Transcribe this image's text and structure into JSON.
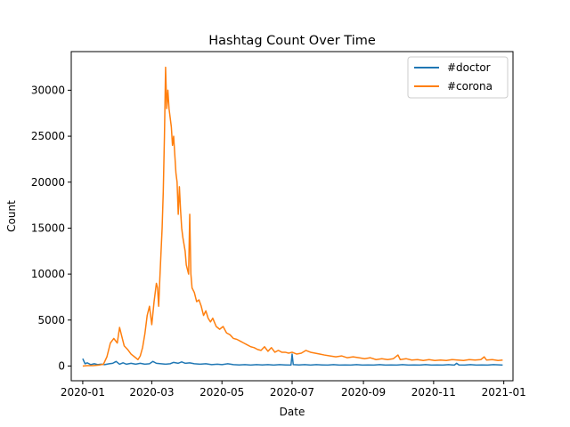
{
  "chart_data": {
    "type": "line",
    "title": "Hashtag Count Over Time",
    "xlabel": "Date",
    "ylabel": "Count",
    "x_type": "date",
    "xlim": [
      "2019-12-22",
      "2021-01-09"
    ],
    "ylim": [
      -1600,
      34200
    ],
    "x_ticks": [
      "2020-01",
      "2020-03",
      "2020-05",
      "2020-07",
      "2020-09",
      "2020-11",
      "2021-01"
    ],
    "x_tick_dates": [
      "2020-01-01",
      "2020-03-01",
      "2020-05-01",
      "2020-07-01",
      "2020-09-01",
      "2020-11-01",
      "2021-01-01"
    ],
    "y_ticks": [
      "0",
      "5000",
      "10000",
      "15000",
      "20000",
      "25000",
      "30000"
    ],
    "y_tick_values": [
      0,
      5000,
      10000,
      15000,
      20000,
      25000,
      30000
    ],
    "legend_position": "top-right",
    "grid": false,
    "series": [
      {
        "name": "#doctor",
        "color": "#1f77b4",
        "points": [
          [
            "2020-01-01",
            800
          ],
          [
            "2020-01-03",
            250
          ],
          [
            "2020-01-05",
            350
          ],
          [
            "2020-01-08",
            150
          ],
          [
            "2020-01-11",
            250
          ],
          [
            "2020-01-14",
            150
          ],
          [
            "2020-01-17",
            200
          ],
          [
            "2020-01-20",
            150
          ],
          [
            "2020-01-24",
            250
          ],
          [
            "2020-01-27",
            300
          ],
          [
            "2020-01-30",
            500
          ],
          [
            "2020-02-02",
            200
          ],
          [
            "2020-02-05",
            350
          ],
          [
            "2020-02-08",
            200
          ],
          [
            "2020-02-12",
            300
          ],
          [
            "2020-02-16",
            200
          ],
          [
            "2020-02-20",
            300
          ],
          [
            "2020-02-24",
            200
          ],
          [
            "2020-02-28",
            250
          ],
          [
            "2020-03-02",
            500
          ],
          [
            "2020-03-05",
            300
          ],
          [
            "2020-03-09",
            250
          ],
          [
            "2020-03-13",
            200
          ],
          [
            "2020-03-17",
            250
          ],
          [
            "2020-03-20",
            400
          ],
          [
            "2020-03-24",
            300
          ],
          [
            "2020-03-27",
            450
          ],
          [
            "2020-03-30",
            300
          ],
          [
            "2020-04-03",
            350
          ],
          [
            "2020-04-07",
            250
          ],
          [
            "2020-04-12",
            200
          ],
          [
            "2020-04-17",
            250
          ],
          [
            "2020-04-22",
            150
          ],
          [
            "2020-04-27",
            200
          ],
          [
            "2020-05-01",
            150
          ],
          [
            "2020-05-06",
            250
          ],
          [
            "2020-05-11",
            150
          ],
          [
            "2020-05-16",
            120
          ],
          [
            "2020-05-21",
            150
          ],
          [
            "2020-05-26",
            100
          ],
          [
            "2020-05-31",
            150
          ],
          [
            "2020-06-05",
            120
          ],
          [
            "2020-06-10",
            150
          ],
          [
            "2020-06-15",
            100
          ],
          [
            "2020-06-20",
            150
          ],
          [
            "2020-06-25",
            120
          ],
          [
            "2020-06-30",
            100
          ],
          [
            "2020-07-01",
            1300
          ],
          [
            "2020-07-02",
            150
          ],
          [
            "2020-07-07",
            120
          ],
          [
            "2020-07-12",
            150
          ],
          [
            "2020-07-17",
            100
          ],
          [
            "2020-07-22",
            150
          ],
          [
            "2020-07-27",
            120
          ],
          [
            "2020-08-01",
            100
          ],
          [
            "2020-08-06",
            150
          ],
          [
            "2020-08-11",
            100
          ],
          [
            "2020-08-16",
            120
          ],
          [
            "2020-08-21",
            100
          ],
          [
            "2020-08-26",
            150
          ],
          [
            "2020-08-31",
            100
          ],
          [
            "2020-09-05",
            120
          ],
          [
            "2020-09-10",
            100
          ],
          [
            "2020-09-15",
            150
          ],
          [
            "2020-09-20",
            100
          ],
          [
            "2020-09-25",
            120
          ],
          [
            "2020-09-30",
            100
          ],
          [
            "2020-10-05",
            150
          ],
          [
            "2020-10-10",
            100
          ],
          [
            "2020-10-15",
            120
          ],
          [
            "2020-10-20",
            100
          ],
          [
            "2020-10-25",
            150
          ],
          [
            "2020-10-30",
            100
          ],
          [
            "2020-11-04",
            120
          ],
          [
            "2020-11-09",
            100
          ],
          [
            "2020-11-14",
            150
          ],
          [
            "2020-11-19",
            100
          ],
          [
            "2020-11-21",
            300
          ],
          [
            "2020-11-23",
            120
          ],
          [
            "2020-11-28",
            100
          ],
          [
            "2020-12-03",
            150
          ],
          [
            "2020-12-08",
            100
          ],
          [
            "2020-12-13",
            120
          ],
          [
            "2020-12-18",
            100
          ],
          [
            "2020-12-23",
            150
          ],
          [
            "2020-12-31",
            100
          ]
        ]
      },
      {
        "name": "#corona",
        "color": "#ff7f0e",
        "points": [
          [
            "2020-01-01",
            0
          ],
          [
            "2020-01-05",
            50
          ],
          [
            "2020-01-10",
            50
          ],
          [
            "2020-01-15",
            100
          ],
          [
            "2020-01-19",
            200
          ],
          [
            "2020-01-22",
            1000
          ],
          [
            "2020-01-25",
            2500
          ],
          [
            "2020-01-28",
            3000
          ],
          [
            "2020-01-31",
            2500
          ],
          [
            "2020-02-02",
            4200
          ],
          [
            "2020-02-04",
            3200
          ],
          [
            "2020-02-06",
            2200
          ],
          [
            "2020-02-09",
            1800
          ],
          [
            "2020-02-12",
            1300
          ],
          [
            "2020-02-15",
            1000
          ],
          [
            "2020-02-18",
            700
          ],
          [
            "2020-02-20",
            1100
          ],
          [
            "2020-02-22",
            2000
          ],
          [
            "2020-02-24",
            3500
          ],
          [
            "2020-02-26",
            5500
          ],
          [
            "2020-02-28",
            6500
          ],
          [
            "2020-03-01",
            4500
          ],
          [
            "2020-03-03",
            7000
          ],
          [
            "2020-03-05",
            9000
          ],
          [
            "2020-03-06",
            8500
          ],
          [
            "2020-03-07",
            6500
          ],
          [
            "2020-03-08",
            9500
          ],
          [
            "2020-03-10",
            15000
          ],
          [
            "2020-03-11",
            19000
          ],
          [
            "2020-03-12",
            25000
          ],
          [
            "2020-03-13",
            32500
          ],
          [
            "2020-03-14",
            28000
          ],
          [
            "2020-03-15",
            30000
          ],
          [
            "2020-03-16",
            28000
          ],
          [
            "2020-03-18",
            26000
          ],
          [
            "2020-03-19",
            24000
          ],
          [
            "2020-03-20",
            25000
          ],
          [
            "2020-03-21",
            23000
          ],
          [
            "2020-03-22",
            21000
          ],
          [
            "2020-03-23",
            20000
          ],
          [
            "2020-03-24",
            16500
          ],
          [
            "2020-03-25",
            19500
          ],
          [
            "2020-03-26",
            17000
          ],
          [
            "2020-03-27",
            15000
          ],
          [
            "2020-03-28",
            14000
          ],
          [
            "2020-03-30",
            12500
          ],
          [
            "2020-03-31",
            11000
          ],
          [
            "2020-04-02",
            10000
          ],
          [
            "2020-04-03",
            16500
          ],
          [
            "2020-04-04",
            10000
          ],
          [
            "2020-04-05",
            8500
          ],
          [
            "2020-04-07",
            8000
          ],
          [
            "2020-04-09",
            7000
          ],
          [
            "2020-04-11",
            7200
          ],
          [
            "2020-04-13",
            6500
          ],
          [
            "2020-04-15",
            5500
          ],
          [
            "2020-04-17",
            6000
          ],
          [
            "2020-04-19",
            5200
          ],
          [
            "2020-04-21",
            4800
          ],
          [
            "2020-04-23",
            5200
          ],
          [
            "2020-04-26",
            4300
          ],
          [
            "2020-04-29",
            4000
          ],
          [
            "2020-05-02",
            4300
          ],
          [
            "2020-05-05",
            3600
          ],
          [
            "2020-05-08",
            3400
          ],
          [
            "2020-05-11",
            3000
          ],
          [
            "2020-05-14",
            2900
          ],
          [
            "2020-05-17",
            2700
          ],
          [
            "2020-05-20",
            2500
          ],
          [
            "2020-05-23",
            2300
          ],
          [
            "2020-05-26",
            2100
          ],
          [
            "2020-05-29",
            2000
          ],
          [
            "2020-06-01",
            1800
          ],
          [
            "2020-06-04",
            1700
          ],
          [
            "2020-06-07",
            2100
          ],
          [
            "2020-06-10",
            1600
          ],
          [
            "2020-06-13",
            2000
          ],
          [
            "2020-06-16",
            1500
          ],
          [
            "2020-06-19",
            1700
          ],
          [
            "2020-06-22",
            1500
          ],
          [
            "2020-06-25",
            1500
          ],
          [
            "2020-06-28",
            1400
          ],
          [
            "2020-07-01",
            1500
          ],
          [
            "2020-07-05",
            1300
          ],
          [
            "2020-07-09",
            1400
          ],
          [
            "2020-07-13",
            1700
          ],
          [
            "2020-07-17",
            1500
          ],
          [
            "2020-07-21",
            1400
          ],
          [
            "2020-07-25",
            1300
          ],
          [
            "2020-07-29",
            1200
          ],
          [
            "2020-08-03",
            1100
          ],
          [
            "2020-08-08",
            1000
          ],
          [
            "2020-08-13",
            1100
          ],
          [
            "2020-08-18",
            900
          ],
          [
            "2020-08-23",
            1000
          ],
          [
            "2020-08-28",
            900
          ],
          [
            "2020-09-02",
            800
          ],
          [
            "2020-09-07",
            900
          ],
          [
            "2020-09-12",
            700
          ],
          [
            "2020-09-17",
            800
          ],
          [
            "2020-09-22",
            700
          ],
          [
            "2020-09-27",
            800
          ],
          [
            "2020-10-01",
            1200
          ],
          [
            "2020-10-03",
            700
          ],
          [
            "2020-10-08",
            800
          ],
          [
            "2020-10-13",
            650
          ],
          [
            "2020-10-18",
            700
          ],
          [
            "2020-10-23",
            600
          ],
          [
            "2020-10-28",
            700
          ],
          [
            "2020-11-02",
            600
          ],
          [
            "2020-11-07",
            650
          ],
          [
            "2020-11-12",
            600
          ],
          [
            "2020-11-17",
            700
          ],
          [
            "2020-11-22",
            650
          ],
          [
            "2020-11-27",
            600
          ],
          [
            "2020-12-02",
            700
          ],
          [
            "2020-12-07",
            650
          ],
          [
            "2020-12-12",
            700
          ],
          [
            "2020-12-15",
            1000
          ],
          [
            "2020-12-17",
            650
          ],
          [
            "2020-12-22",
            700
          ],
          [
            "2020-12-27",
            600
          ],
          [
            "2020-12-31",
            650
          ]
        ]
      }
    ]
  }
}
